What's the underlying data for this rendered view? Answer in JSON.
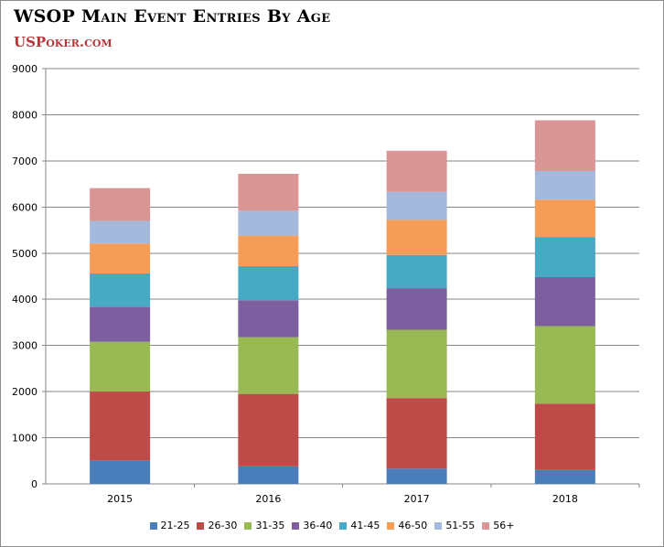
{
  "title": "WSOP Main Event Entries By Age",
  "subtitle": "USPoker.com",
  "chart_data": {
    "type": "bar",
    "stacked": true,
    "categories": [
      "2015",
      "2016",
      "2017",
      "2018"
    ],
    "ylim": [
      0,
      9000
    ],
    "yticks": [
      0,
      1000,
      2000,
      3000,
      4000,
      5000,
      6000,
      7000,
      8000,
      9000
    ],
    "grid": true,
    "legend_position": "bottom",
    "series": [
      {
        "name": "21-25",
        "color": "#4a7ebb",
        "values": [
          500,
          380,
          330,
          300
        ]
      },
      {
        "name": "26-30",
        "color": "#be4b48",
        "values": [
          1500,
          1570,
          1530,
          1440
        ]
      },
      {
        "name": "31-35",
        "color": "#98b954",
        "values": [
          1080,
          1230,
          1480,
          1680
        ]
      },
      {
        "name": "36-40",
        "color": "#7d5fa0",
        "values": [
          760,
          800,
          900,
          1060
        ]
      },
      {
        "name": "41-45",
        "color": "#46aac5",
        "values": [
          720,
          740,
          720,
          870
        ]
      },
      {
        "name": "46-50",
        "color": "#f59d56",
        "values": [
          650,
          660,
          760,
          810
        ]
      },
      {
        "name": "51-55",
        "color": "#a5b9dc",
        "values": [
          490,
          540,
          610,
          620
        ]
      },
      {
        "name": "56+",
        "color": "#d99694",
        "values": [
          710,
          800,
          890,
          1100
        ]
      }
    ]
  }
}
